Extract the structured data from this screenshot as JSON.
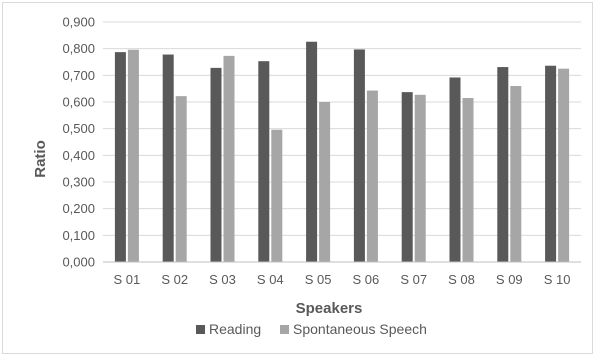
{
  "chart_data": {
    "type": "bar",
    "xlabel": "Speakers",
    "ylabel": "Ratio",
    "ylim": [
      0,
      0.9
    ],
    "y_ticks": [
      "0,000",
      "0,100",
      "0,200",
      "0,300",
      "0,400",
      "0,500",
      "0,600",
      "0,700",
      "0,800",
      "0,900"
    ],
    "grid": true,
    "legend_position": "bottom",
    "categories": [
      "S 01",
      "S 02",
      "S 03",
      "S 04",
      "S 05",
      "S 06",
      "S 07",
      "S 08",
      "S 09",
      "S 10"
    ],
    "series": [
      {
        "name": "Reading",
        "color": "#595959",
        "values": [
          0.787,
          0.778,
          0.728,
          0.753,
          0.826,
          0.797,
          0.637,
          0.692,
          0.731,
          0.736
        ]
      },
      {
        "name": "Spontaneous Speech",
        "color": "#a6a6a6",
        "values": [
          0.796,
          0.622,
          0.773,
          0.496,
          0.6,
          0.643,
          0.627,
          0.615,
          0.66,
          0.725
        ]
      }
    ]
  }
}
